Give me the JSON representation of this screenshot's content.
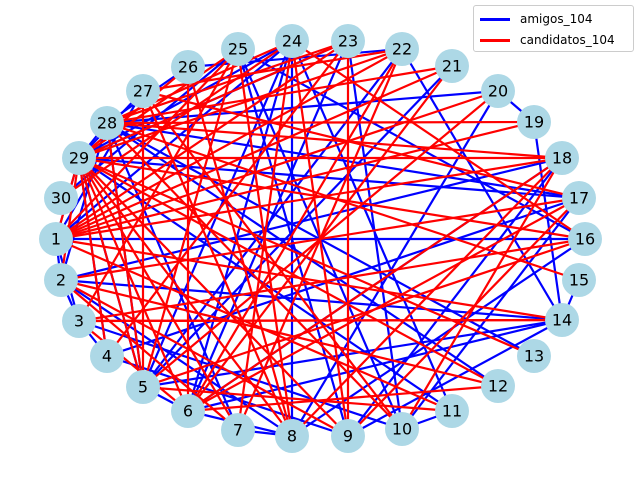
{
  "legend": {
    "items": [
      {
        "label": "amigos_104",
        "color": "#0000ff"
      },
      {
        "label": "candidatos_104",
        "color": "#ff0000"
      }
    ]
  },
  "style": {
    "node_fill": "#add8e6",
    "label_color": "#000000"
  },
  "nodes": [
    "1",
    "2",
    "3",
    "4",
    "5",
    "6",
    "7",
    "8",
    "9",
    "10",
    "11",
    "12",
    "13",
    "14",
    "15",
    "16",
    "17",
    "18",
    "19",
    "20",
    "21",
    "22",
    "23",
    "24",
    "25",
    "26",
    "27",
    "28",
    "29",
    "30"
  ],
  "edges": {
    "amigos_104": [
      [
        1,
        16
      ],
      [
        1,
        2
      ],
      [
        1,
        27
      ],
      [
        1,
        24
      ],
      [
        2,
        3
      ],
      [
        2,
        28
      ],
      [
        2,
        8
      ],
      [
        2,
        18
      ],
      [
        3,
        10
      ],
      [
        3,
        4
      ],
      [
        4,
        9
      ],
      [
        4,
        29
      ],
      [
        4,
        17
      ],
      [
        5,
        6
      ],
      [
        5,
        14
      ],
      [
        5,
        22
      ],
      [
        5,
        24
      ],
      [
        5,
        28
      ],
      [
        5,
        29
      ],
      [
        6,
        8
      ],
      [
        6,
        24
      ],
      [
        6,
        18
      ],
      [
        6,
        14
      ],
      [
        6,
        23
      ],
      [
        7,
        8
      ],
      [
        7,
        28
      ],
      [
        8,
        16
      ],
      [
        8,
        20
      ],
      [
        8,
        24
      ],
      [
        9,
        25
      ],
      [
        9,
        18
      ],
      [
        9,
        14
      ],
      [
        10,
        11
      ],
      [
        10,
        17
      ],
      [
        10,
        23
      ],
      [
        10,
        25
      ],
      [
        11,
        29
      ],
      [
        11,
        24
      ],
      [
        12,
        28
      ],
      [
        13,
        28
      ],
      [
        14,
        15
      ],
      [
        14,
        19
      ],
      [
        14,
        22
      ],
      [
        14,
        2
      ],
      [
        16,
        25
      ],
      [
        17,
        29
      ],
      [
        17,
        28
      ],
      [
        19,
        20
      ],
      [
        20,
        28
      ],
      [
        21,
        5
      ],
      [
        22,
        26
      ],
      [
        23,
        29
      ],
      [
        24,
        29
      ],
      [
        25,
        30
      ],
      [
        26,
        28
      ],
      [
        27,
        29
      ],
      [
        28,
        29
      ],
      [
        29,
        1
      ],
      [
        1,
        3
      ]
    ],
    "candidatos_104": [
      [
        1,
        19
      ],
      [
        1,
        21
      ],
      [
        1,
        22
      ],
      [
        1,
        23
      ],
      [
        1,
        25
      ],
      [
        1,
        18
      ],
      [
        2,
        12
      ],
      [
        2,
        17
      ],
      [
        2,
        7
      ],
      [
        2,
        29
      ],
      [
        3,
        16
      ],
      [
        3,
        25
      ],
      [
        3,
        6
      ],
      [
        4,
        23
      ],
      [
        5,
        16
      ],
      [
        5,
        25
      ],
      [
        5,
        28
      ],
      [
        5,
        27
      ],
      [
        5,
        29
      ],
      [
        6,
        18
      ],
      [
        6,
        21
      ],
      [
        6,
        22
      ],
      [
        6,
        26
      ],
      [
        6,
        29
      ],
      [
        7,
        29
      ],
      [
        7,
        24
      ],
      [
        7,
        22
      ],
      [
        8,
        25
      ],
      [
        8,
        18
      ],
      [
        8,
        27
      ],
      [
        8,
        29
      ],
      [
        9,
        17
      ],
      [
        9,
        29
      ],
      [
        9,
        23
      ],
      [
        9,
        24
      ],
      [
        10,
        18
      ],
      [
        10,
        28
      ],
      [
        11,
        1
      ],
      [
        11,
        5
      ],
      [
        12,
        29
      ],
      [
        13,
        29
      ],
      [
        14,
        1
      ],
      [
        14,
        3
      ],
      [
        15,
        28
      ],
      [
        16,
        29
      ],
      [
        16,
        24
      ],
      [
        17,
        27
      ],
      [
        18,
        29
      ],
      [
        18,
        28
      ],
      [
        19,
        28
      ],
      [
        20,
        1
      ],
      [
        20,
        5
      ],
      [
        21,
        28
      ],
      [
        22,
        29
      ],
      [
        22,
        27
      ],
      [
        23,
        29
      ],
      [
        23,
        28
      ],
      [
        24,
        28
      ],
      [
        24,
        30
      ],
      [
        25,
        29
      ],
      [
        26,
        29
      ],
      [
        10,
        27
      ],
      [
        6,
        12
      ],
      [
        3,
        14
      ],
      [
        2,
        9
      ],
      [
        6,
        17
      ],
      [
        4,
        29
      ],
      [
        8,
        26
      ],
      [
        1,
        29
      ]
    ]
  }
}
